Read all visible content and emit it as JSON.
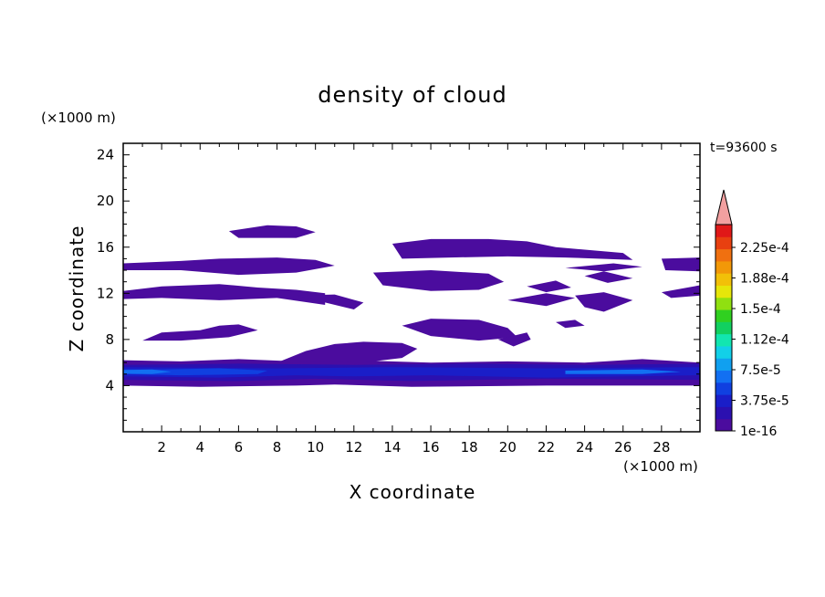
{
  "chart_data": {
    "type": "heatmap",
    "title": "density of cloud",
    "xlabel": "X coordinate",
    "ylabel": "Z coordinate",
    "x_unit": "(×1000 m)",
    "y_unit": "(×1000 m)",
    "time_label": "t=93600 s",
    "xlim": [
      0,
      30
    ],
    "ylim": [
      0,
      25
    ],
    "x_ticks": [
      2,
      4,
      6,
      8,
      10,
      12,
      14,
      16,
      18,
      20,
      22,
      24,
      26,
      28
    ],
    "y_ticks": [
      4,
      8,
      12,
      16,
      20,
      24
    ],
    "colorbar": {
      "labels": [
        "1e-16",
        "3.75e-5",
        "7.5e-5",
        "1.12e-4",
        "1.5e-4",
        "1.88e-4",
        "2.25e-4"
      ],
      "colors": [
        "#4b0c9e",
        "#2b10b0",
        "#1a1ec8",
        "#1040e0",
        "#1270f2",
        "#10a0f0",
        "#12d0e8",
        "#12e6b0",
        "#12d060",
        "#30d020",
        "#90e010",
        "#e6e60a",
        "#f2c008",
        "#f29808",
        "#f07010",
        "#e84010",
        "#e01818"
      ],
      "extend_color": "#f2a0a0"
    },
    "regions": [
      {
        "level": 0,
        "polygon": [
          [
            0,
            4
          ],
          [
            4,
            3.9
          ],
          [
            9,
            4
          ],
          [
            11,
            4.1
          ],
          [
            15,
            3.9
          ],
          [
            22,
            4
          ],
          [
            30,
            4
          ],
          [
            30,
            6
          ],
          [
            27,
            6.3
          ],
          [
            24,
            6
          ],
          [
            20,
            6.1
          ],
          [
            16,
            6
          ],
          [
            12,
            6.2
          ],
          [
            9,
            6.1
          ],
          [
            6,
            6.3
          ],
          [
            3,
            6.1
          ],
          [
            0,
            6.2
          ]
        ]
      },
      {
        "level": 1,
        "polygon": [
          [
            0,
            4.5
          ],
          [
            6,
            4.4
          ],
          [
            10,
            4.6
          ],
          [
            15,
            4.4
          ],
          [
            22,
            4.6
          ],
          [
            30,
            4.5
          ],
          [
            30,
            5.9
          ],
          [
            24,
            5.8
          ],
          [
            18,
            5.9
          ],
          [
            12,
            5.8
          ],
          [
            6,
            5.9
          ],
          [
            0,
            5.8
          ]
        ]
      },
      {
        "level": 2,
        "polygon": [
          [
            0,
            4.8
          ],
          [
            5,
            4.7
          ],
          [
            9,
            4.9
          ],
          [
            12,
            4.8
          ],
          [
            16,
            4.9
          ],
          [
            22,
            4.7
          ],
          [
            30,
            4.9
          ],
          [
            30,
            5.6
          ],
          [
            22,
            5.5
          ],
          [
            14,
            5.6
          ],
          [
            8,
            5.5
          ],
          [
            0,
            5.6
          ]
        ]
      },
      {
        "level": 3,
        "polygon": [
          [
            0,
            5
          ],
          [
            3,
            4.9
          ],
          [
            7,
            5
          ],
          [
            7.5,
            5.3
          ],
          [
            5,
            5.5
          ],
          [
            2,
            5.4
          ],
          [
            0,
            5.4
          ]
        ]
      },
      {
        "level": 4,
        "polygon": [
          [
            0,
            5.05
          ],
          [
            1.5,
            5
          ],
          [
            2.5,
            5.2
          ],
          [
            1.5,
            5.4
          ],
          [
            0,
            5.35
          ]
        ]
      },
      {
        "level": 4,
        "polygon": [
          [
            23,
            5
          ],
          [
            27,
            5
          ],
          [
            29,
            5.2
          ],
          [
            27,
            5.4
          ],
          [
            23,
            5.3
          ]
        ]
      },
      {
        "level": 0,
        "polygon": [
          [
            8,
            6
          ],
          [
            9.5,
            7
          ],
          [
            11,
            7.6
          ],
          [
            12.5,
            7.8
          ],
          [
            14.5,
            7.7
          ],
          [
            15.3,
            7.2
          ],
          [
            14.5,
            6.4
          ],
          [
            13,
            6.1
          ]
        ]
      },
      {
        "level": 0,
        "polygon": [
          [
            1,
            7.9
          ],
          [
            2,
            8.6
          ],
          [
            4,
            8.8
          ],
          [
            5,
            9.2
          ],
          [
            6,
            9.3
          ],
          [
            7,
            8.8
          ],
          [
            5.5,
            8.2
          ],
          [
            3,
            7.9
          ]
        ]
      },
      {
        "level": 0,
        "polygon": [
          [
            14.5,
            9.2
          ],
          [
            16,
            9.8
          ],
          [
            18.5,
            9.7
          ],
          [
            20,
            9
          ],
          [
            20.5,
            8.2
          ],
          [
            18.5,
            7.9
          ],
          [
            16,
            8.3
          ]
        ]
      },
      {
        "level": 0,
        "polygon": [
          [
            19.5,
            8
          ],
          [
            21,
            8.6
          ],
          [
            21.2,
            8
          ],
          [
            20.3,
            7.4
          ]
        ]
      },
      {
        "level": 0,
        "polygon": [
          [
            0,
            12.2
          ],
          [
            2,
            12.6
          ],
          [
            5,
            12.8
          ],
          [
            7,
            12.5
          ],
          [
            9,
            12.3
          ],
          [
            10.5,
            12
          ],
          [
            10.5,
            11
          ],
          [
            8,
            11.6
          ],
          [
            5,
            11.4
          ],
          [
            2,
            11.6
          ],
          [
            0,
            11.5
          ]
        ]
      },
      {
        "level": 0,
        "polygon": [
          [
            9,
            11.8
          ],
          [
            10.5,
            11.2
          ],
          [
            12,
            10.6
          ],
          [
            12.5,
            11.2
          ],
          [
            11,
            11.9
          ]
        ]
      },
      {
        "level": 0,
        "polygon": [
          [
            13,
            13.8
          ],
          [
            16,
            14
          ],
          [
            19,
            13.7
          ],
          [
            19.8,
            13
          ],
          [
            18.5,
            12.3
          ],
          [
            16,
            12.2
          ],
          [
            13.5,
            12.7
          ]
        ]
      },
      {
        "level": 0,
        "polygon": [
          [
            0,
            14.6
          ],
          [
            3,
            14.8
          ],
          [
            5,
            15
          ],
          [
            8,
            15.1
          ],
          [
            10,
            14.9
          ],
          [
            11,
            14.4
          ],
          [
            9,
            13.8
          ],
          [
            6,
            13.6
          ],
          [
            3,
            14
          ],
          [
            0,
            14
          ]
        ]
      },
      {
        "level": 0,
        "polygon": [
          [
            14,
            16.3
          ],
          [
            16,
            16.7
          ],
          [
            19,
            16.7
          ],
          [
            21,
            16.5
          ],
          [
            22.5,
            16
          ],
          [
            26,
            15.5
          ],
          [
            26.5,
            14.9
          ],
          [
            23,
            15.1
          ],
          [
            20,
            15.2
          ],
          [
            17,
            15.1
          ],
          [
            14.5,
            15
          ]
        ]
      },
      {
        "level": 0,
        "polygon": [
          [
            5.5,
            17.4
          ],
          [
            7.5,
            17.9
          ],
          [
            9,
            17.8
          ],
          [
            10,
            17.3
          ],
          [
            9,
            16.8
          ],
          [
            6,
            16.8
          ]
        ]
      },
      {
        "level": 0,
        "polygon": [
          [
            28,
            15
          ],
          [
            30,
            15.1
          ],
          [
            30,
            13.9
          ],
          [
            28.2,
            14
          ]
        ]
      },
      {
        "level": 0,
        "polygon": [
          [
            28,
            12.1
          ],
          [
            30,
            12.7
          ],
          [
            30,
            11.8
          ],
          [
            28.5,
            11.6
          ]
        ]
      },
      {
        "level": 0,
        "polygon": [
          [
            20,
            11.4
          ],
          [
            22,
            12
          ],
          [
            23.5,
            11.6
          ],
          [
            22,
            10.9
          ]
        ]
      },
      {
        "level": 0,
        "polygon": [
          [
            23.5,
            11.8
          ],
          [
            25,
            12.1
          ],
          [
            26.5,
            11.4
          ],
          [
            25,
            10.4
          ],
          [
            24,
            10.8
          ]
        ]
      },
      {
        "level": 0,
        "polygon": [
          [
            24,
            13.5
          ],
          [
            25,
            13.9
          ],
          [
            26.5,
            13.3
          ],
          [
            25.2,
            12.9
          ]
        ]
      },
      {
        "level": 0,
        "polygon": [
          [
            23,
            14.2
          ],
          [
            25.5,
            14.6
          ],
          [
            27,
            14.3
          ],
          [
            25,
            13.9
          ]
        ]
      },
      {
        "level": 0,
        "polygon": [
          [
            21,
            12.6
          ],
          [
            22.5,
            13.1
          ],
          [
            23.3,
            12.5
          ],
          [
            22,
            12.1
          ]
        ]
      },
      {
        "level": 0,
        "polygon": [
          [
            22.5,
            9.5
          ],
          [
            23.5,
            9.7
          ],
          [
            24,
            9.2
          ],
          [
            23,
            9
          ]
        ]
      }
    ]
  }
}
